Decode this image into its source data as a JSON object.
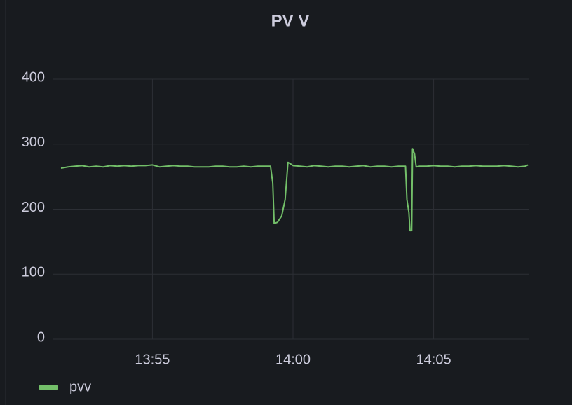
{
  "chart_data": {
    "type": "line",
    "title": "PV V",
    "x": [
      831.75,
      832,
      832.25,
      832.5,
      832.75,
      833,
      833.25,
      833.5,
      833.75,
      834,
      834.25,
      834.5,
      834.75,
      835,
      835.25,
      835.5,
      835.75,
      836,
      836.25,
      836.5,
      836.75,
      837,
      837.25,
      837.5,
      837.75,
      838,
      838.25,
      838.5,
      838.75,
      839,
      839.2,
      839.28,
      839.33,
      839.45,
      839.6,
      839.72,
      839.82,
      839.9,
      840,
      840.25,
      840.5,
      840.75,
      841,
      841.25,
      841.5,
      841.75,
      842,
      842.25,
      842.5,
      842.75,
      843,
      843.25,
      843.5,
      843.75,
      844,
      844.05,
      844.12,
      844.16,
      844.22,
      844.25,
      844.32,
      844.38,
      844.5,
      844.75,
      845,
      845.25,
      845.5,
      845.75,
      846,
      846.25,
      846.5,
      846.75,
      847,
      847.25,
      847.5,
      847.75,
      848,
      848.25,
      848.35
    ],
    "series": [
      {
        "name": "pvv",
        "color": "#73bf69",
        "values": [
          263,
          265,
          266,
          267,
          265,
          266,
          265,
          267,
          266,
          267,
          266,
          267,
          267,
          268,
          265,
          266,
          267,
          266,
          266,
          265,
          265,
          265,
          266,
          266,
          265,
          265,
          266,
          265,
          266,
          266,
          266,
          240,
          178,
          180,
          190,
          215,
          272,
          270,
          267,
          266,
          265,
          267,
          266,
          265,
          266,
          266,
          265,
          266,
          267,
          265,
          266,
          266,
          265,
          266,
          266,
          215,
          195,
          167,
          167,
          293,
          285,
          265,
          266,
          266,
          267,
          266,
          266,
          265,
          266,
          266,
          267,
          266,
          266,
          266,
          267,
          266,
          265,
          266,
          268
        ]
      }
    ],
    "xlim": [
      831.45,
      848.4
    ],
    "xticks": [
      {
        "value": 835,
        "label": "13:55"
      },
      {
        "value": 840,
        "label": "14:00"
      },
      {
        "value": 845,
        "label": "14:05"
      }
    ],
    "ylim": [
      0,
      400
    ],
    "yticks": [
      0,
      100,
      200,
      300,
      400
    ],
    "grid": true,
    "legend": "bottom-left"
  }
}
